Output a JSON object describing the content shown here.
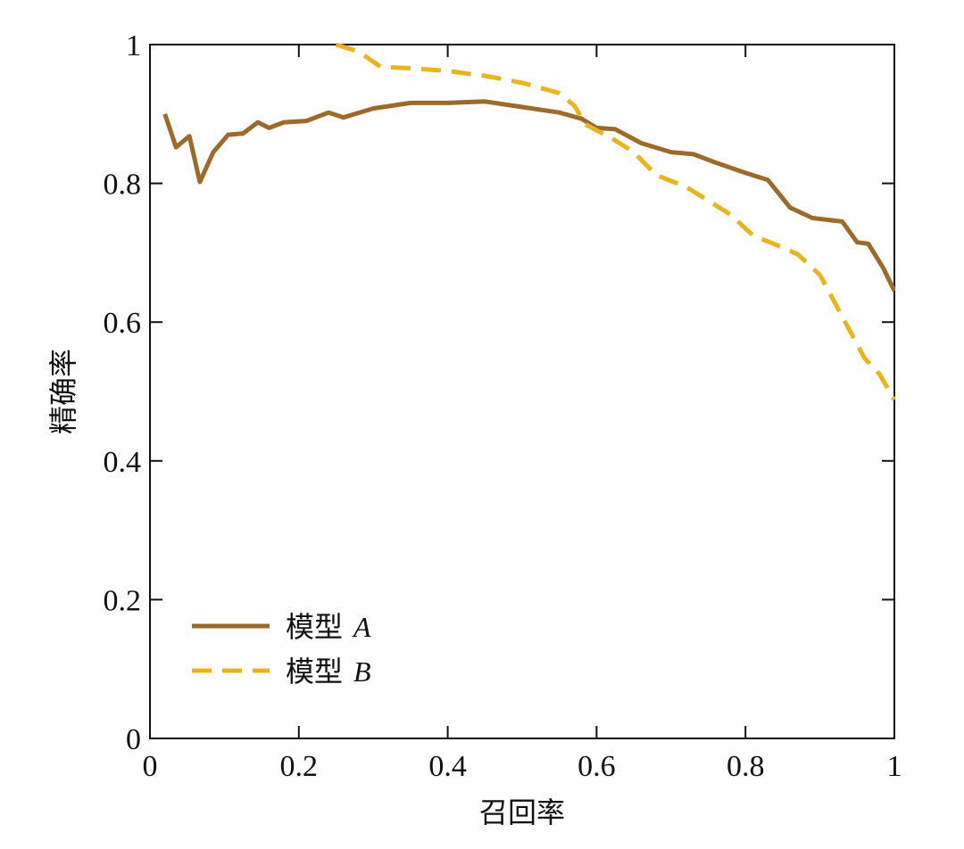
{
  "chart_data": {
    "type": "line",
    "xlabel": "召回率",
    "ylabel": "精确率",
    "xlim": [
      0,
      1
    ],
    "ylim": [
      0,
      1
    ],
    "xticks": [
      0,
      0.2,
      0.4,
      0.6,
      0.8,
      1
    ],
    "xtick_labels": [
      "0",
      "0.2",
      "0.4",
      "0.6",
      "0.8",
      "1"
    ],
    "yticks": [
      0,
      0.2,
      0.4,
      0.6,
      0.8,
      1
    ],
    "ytick_labels": [
      "0",
      "0.2",
      "0.4",
      "0.6",
      "0.8",
      "1"
    ],
    "grid": false,
    "legend_position": "bottom-left",
    "series": [
      {
        "name": "模型 A",
        "name_main": "模型",
        "name_letter": "A",
        "color": "#9c6a2a",
        "dash": "solid",
        "x": [
          0.02,
          0.035,
          0.053,
          0.067,
          0.085,
          0.105,
          0.125,
          0.145,
          0.16,
          0.18,
          0.21,
          0.24,
          0.26,
          0.3,
          0.35,
          0.4,
          0.45,
          0.5,
          0.55,
          0.58,
          0.6,
          0.625,
          0.66,
          0.7,
          0.73,
          0.76,
          0.8,
          0.83,
          0.86,
          0.89,
          0.93,
          0.95,
          0.965,
          0.985,
          1.0
        ],
        "y": [
          0.9,
          0.852,
          0.868,
          0.802,
          0.845,
          0.87,
          0.872,
          0.888,
          0.88,
          0.888,
          0.89,
          0.902,
          0.895,
          0.908,
          0.916,
          0.916,
          0.918,
          0.91,
          0.902,
          0.893,
          0.88,
          0.878,
          0.858,
          0.845,
          0.842,
          0.83,
          0.815,
          0.805,
          0.765,
          0.75,
          0.745,
          0.715,
          0.713,
          0.678,
          0.645
        ]
      },
      {
        "name": "模型 B",
        "name_main": "模型",
        "name_letter": "B",
        "color": "#e8b51f",
        "dash": "dashed",
        "x": [
          0.25,
          0.28,
          0.31,
          0.35,
          0.4,
          0.45,
          0.5,
          0.55,
          0.57,
          0.585,
          0.62,
          0.65,
          0.68,
          0.72,
          0.75,
          0.78,
          0.81,
          0.84,
          0.87,
          0.9,
          0.93,
          0.96,
          0.98,
          1.0
        ],
        "y": [
          1.0,
          0.99,
          0.968,
          0.966,
          0.962,
          0.955,
          0.945,
          0.93,
          0.912,
          0.885,
          0.865,
          0.845,
          0.812,
          0.795,
          0.775,
          0.755,
          0.725,
          0.712,
          0.698,
          0.668,
          0.608,
          0.548,
          0.525,
          0.488
        ]
      }
    ]
  }
}
